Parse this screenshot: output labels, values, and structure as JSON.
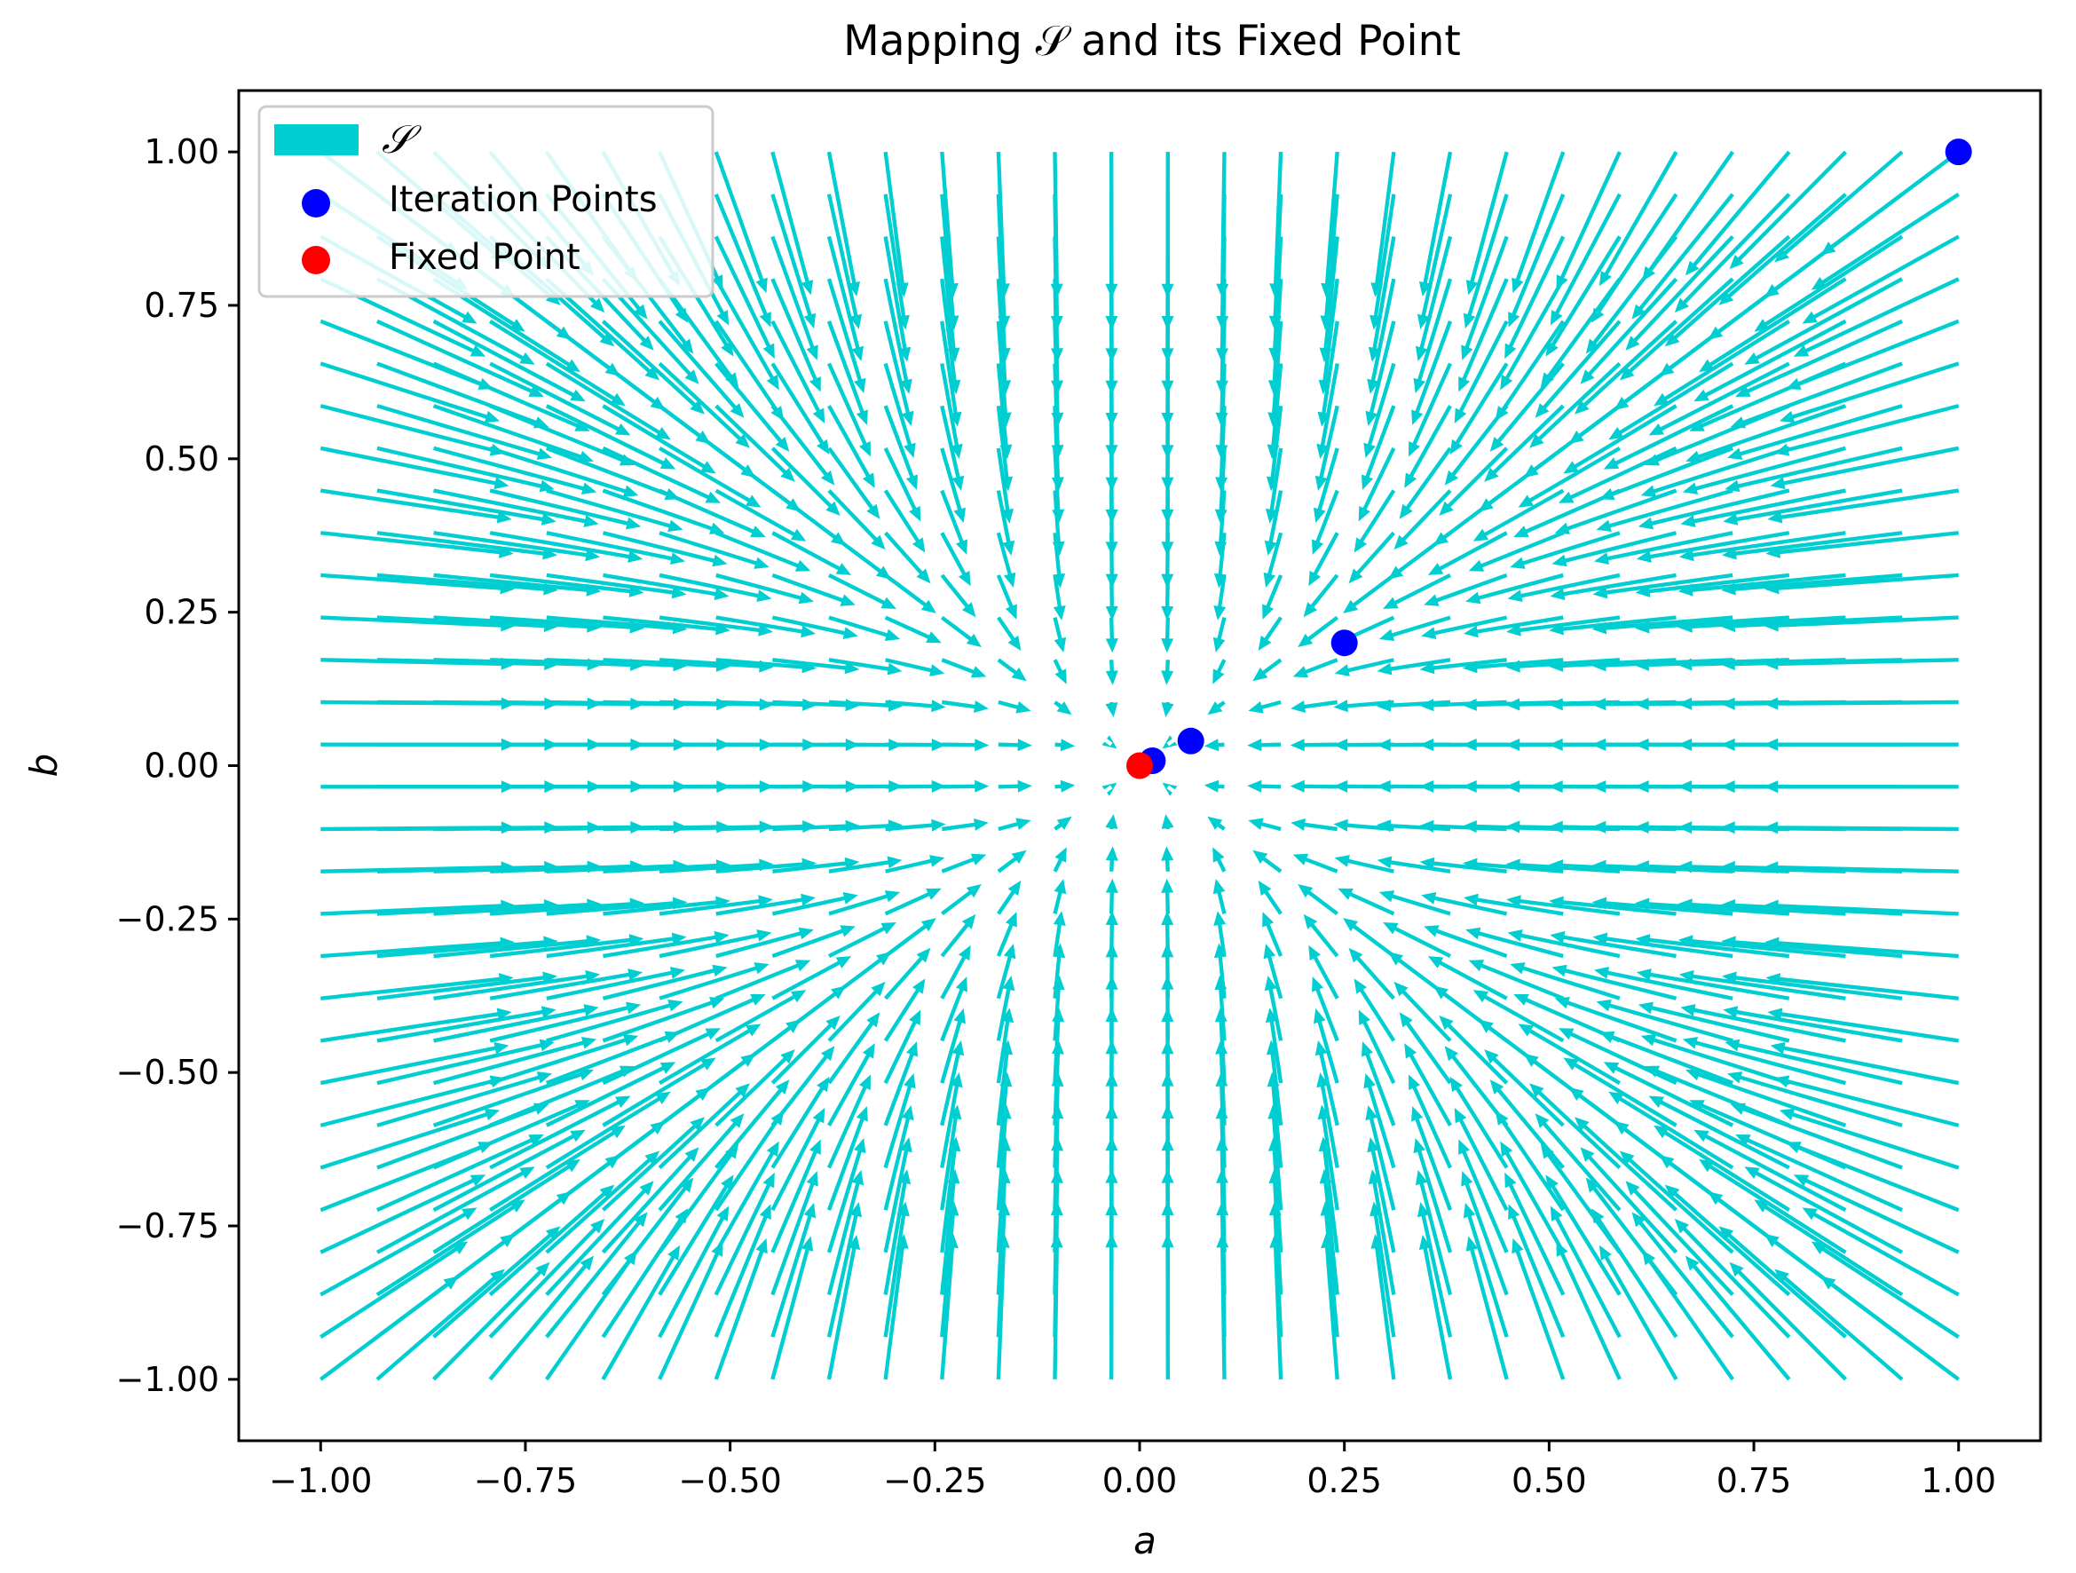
{
  "chart_data": {
    "type": "scatter",
    "title": "Mapping 𝒮 and its Fixed Point",
    "xlabel": "a",
    "ylabel": "b",
    "xlim": [
      -1.1,
      1.1
    ],
    "ylim": [
      -1.1,
      1.1
    ],
    "x_ticks": [
      -1.0,
      -0.75,
      -0.5,
      -0.25,
      0.0,
      0.25,
      0.5,
      0.75,
      1.0
    ],
    "y_ticks": [
      -1.0,
      -0.75,
      -0.5,
      -0.25,
      0.0,
      0.25,
      0.5,
      0.75,
      1.0
    ],
    "x_tick_labels": [
      "−1.00",
      "−0.75",
      "−0.50",
      "−0.25",
      "0.00",
      "0.25",
      "0.50",
      "0.75",
      "1.00"
    ],
    "y_tick_labels": [
      "−1.00",
      "−0.75",
      "−0.50",
      "−0.25",
      "0.00",
      "0.25",
      "0.50",
      "0.75",
      "1.00"
    ],
    "grid": false,
    "legend_position": "top-left",
    "vector_field": {
      "name": "𝒮",
      "color": "#00CED1",
      "x_range": [
        -1.0,
        1.0
      ],
      "y_range": [
        -1.0,
        1.0
      ],
      "grid_count": 30,
      "map": "S(a,b) = (a², b²) scaled toward origin"
    },
    "series": [
      {
        "name": "Iteration Points",
        "color": "#0000FF",
        "points": [
          [
            1.0,
            1.0
          ],
          [
            0.25,
            0.2
          ],
          [
            0.0625,
            0.04
          ],
          [
            0.015625,
            0.008
          ]
        ]
      },
      {
        "name": "Fixed Point",
        "color": "#FF0000",
        "points": [
          [
            0.0,
            0.0
          ]
        ]
      }
    ]
  }
}
